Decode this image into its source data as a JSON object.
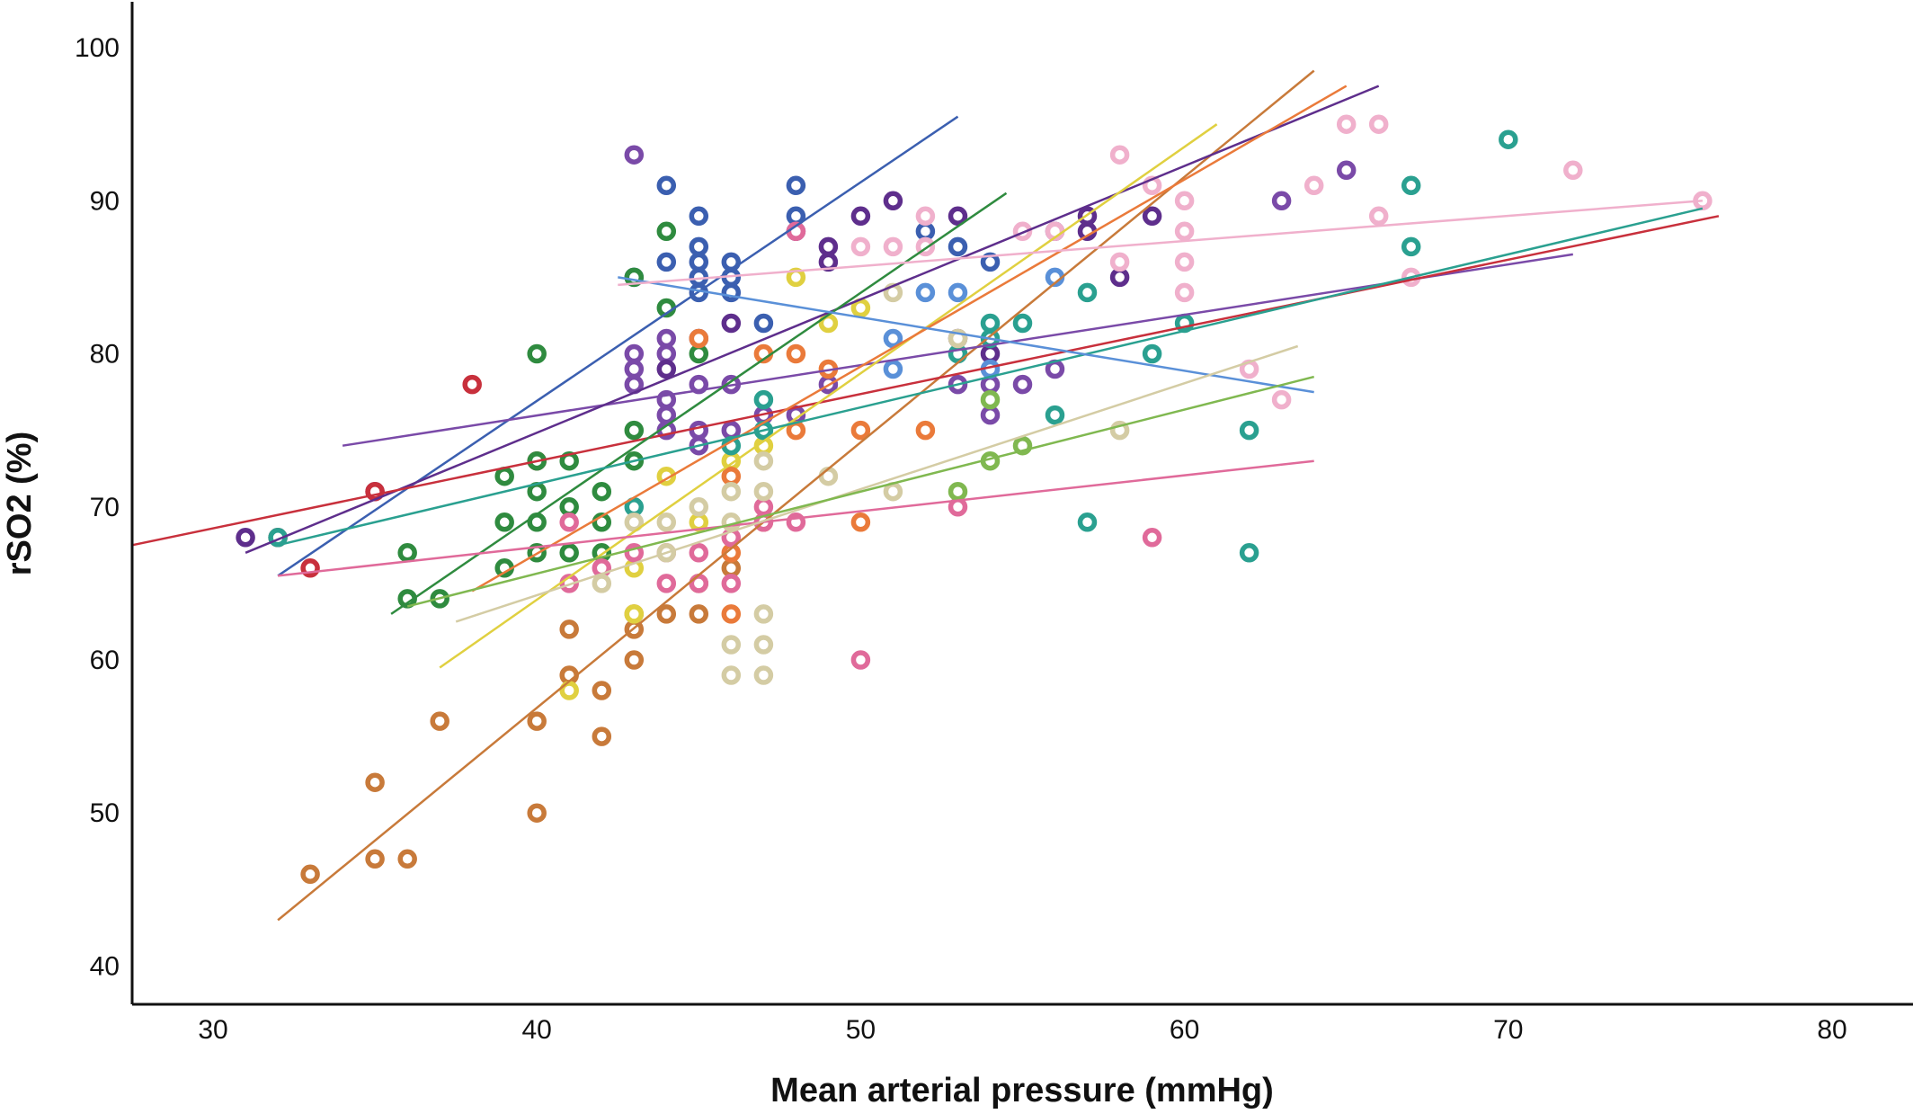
{
  "chart_data": {
    "type": "scatter",
    "title": "",
    "xlabel": "Mean arterial pressure (mmHg)",
    "ylabel": "rSO2 (%)",
    "xlim": [
      27.5,
      82.5
    ],
    "ylim": [
      37.5,
      103
    ],
    "xticks": [
      30,
      40,
      50,
      60,
      70,
      80
    ],
    "yticks": [
      40,
      50,
      60,
      70,
      80,
      90,
      100
    ],
    "grid": false,
    "legend": "none",
    "series": [
      {
        "color": "#c87a3a",
        "points": [
          [
            33,
            46
          ],
          [
            35,
            47
          ],
          [
            35,
            52
          ],
          [
            36,
            47
          ],
          [
            37,
            56
          ],
          [
            40,
            50
          ],
          [
            40,
            56
          ],
          [
            41,
            59
          ],
          [
            41,
            62
          ],
          [
            42,
            55
          ],
          [
            42,
            58
          ],
          [
            43,
            60
          ],
          [
            43,
            62
          ],
          [
            43,
            63
          ],
          [
            44,
            63
          ],
          [
            45,
            63
          ],
          [
            45,
            65
          ],
          [
            46,
            66
          ]
        ],
        "fit": [
          [
            32,
            43
          ],
          [
            64,
            98.5
          ]
        ]
      },
      {
        "color": "#3b5fb0",
        "points": [
          [
            43,
            85
          ],
          [
            44,
            86
          ],
          [
            44,
            91
          ],
          [
            45,
            84
          ],
          [
            45,
            85
          ],
          [
            45,
            86
          ],
          [
            45,
            87
          ],
          [
            45,
            89
          ],
          [
            46,
            84
          ],
          [
            46,
            85
          ],
          [
            46,
            86
          ],
          [
            47,
            82
          ],
          [
            48,
            89
          ],
          [
            48,
            91
          ],
          [
            52,
            88
          ],
          [
            53,
            87
          ],
          [
            54,
            86
          ]
        ],
        "fit": [
          [
            32,
            65.5
          ],
          [
            53,
            95.5
          ]
        ]
      },
      {
        "color": "#7a4aa8",
        "points": [
          [
            43,
            93
          ],
          [
            43,
            78
          ],
          [
            43,
            79
          ],
          [
            43,
            80
          ],
          [
            44,
            75
          ],
          [
            44,
            76
          ],
          [
            44,
            77
          ],
          [
            44,
            80
          ],
          [
            44,
            81
          ],
          [
            45,
            74
          ],
          [
            45,
            75
          ],
          [
            45,
            78
          ],
          [
            46,
            75
          ],
          [
            46,
            78
          ],
          [
            47,
            76
          ],
          [
            48,
            76
          ],
          [
            49,
            78
          ],
          [
            53,
            78
          ],
          [
            54,
            76
          ],
          [
            54,
            78
          ],
          [
            55,
            78
          ],
          [
            56,
            79
          ],
          [
            63,
            90
          ],
          [
            65,
            92
          ]
        ],
        "fit": [
          [
            34,
            74
          ],
          [
            72,
            86.5
          ]
        ]
      },
      {
        "color": "#5e2e8c",
        "points": [
          [
            31,
            68
          ],
          [
            35,
            71
          ],
          [
            44,
            79
          ],
          [
            45,
            81
          ],
          [
            46,
            82
          ],
          [
            48,
            88
          ],
          [
            49,
            86
          ],
          [
            49,
            87
          ],
          [
            50,
            89
          ],
          [
            51,
            90
          ],
          [
            53,
            89
          ],
          [
            53,
            81
          ],
          [
            54,
            80
          ],
          [
            56,
            88
          ],
          [
            57,
            88
          ],
          [
            57,
            89
          ],
          [
            58,
            85
          ],
          [
            59,
            89
          ]
        ],
        "fit": [
          [
            31,
            67
          ],
          [
            66,
            97.5
          ]
        ]
      },
      {
        "color": "#c8303c",
        "points": [
          [
            32,
            68
          ],
          [
            33,
            66
          ],
          [
            35,
            71
          ],
          [
            38,
            78
          ],
          [
            40,
            73
          ]
        ],
        "fit": [
          [
            27.5,
            67.5
          ],
          [
            76.5,
            89
          ]
        ]
      },
      {
        "color": "#2f8b3f",
        "points": [
          [
            36,
            67
          ],
          [
            36,
            64
          ],
          [
            37,
            64
          ],
          [
            39,
            72
          ],
          [
            39,
            69
          ],
          [
            39,
            66
          ],
          [
            40,
            69
          ],
          [
            40,
            71
          ],
          [
            40,
            73
          ],
          [
            40,
            80
          ],
          [
            40,
            67
          ],
          [
            41,
            67
          ],
          [
            41,
            70
          ],
          [
            41,
            73
          ],
          [
            42,
            69
          ],
          [
            42,
            71
          ],
          [
            42,
            67
          ],
          [
            43,
            75
          ],
          [
            43,
            73
          ],
          [
            43,
            85
          ],
          [
            44,
            83
          ],
          [
            44,
            88
          ],
          [
            45,
            80
          ]
        ],
        "fit": [
          [
            35.5,
            63
          ],
          [
            54.5,
            90.5
          ]
        ]
      },
      {
        "color": "#e0d040",
        "points": [
          [
            41,
            58
          ],
          [
            43,
            63
          ],
          [
            43,
            66
          ],
          [
            44,
            72
          ],
          [
            45,
            69
          ],
          [
            46,
            73
          ],
          [
            47,
            74
          ],
          [
            48,
            85
          ],
          [
            49,
            82
          ],
          [
            50,
            83
          ]
        ],
        "fit": [
          [
            37,
            59.5
          ],
          [
            61,
            95
          ]
        ]
      },
      {
        "color": "#ea7a3a",
        "points": [
          [
            45,
            81
          ],
          [
            46,
            63
          ],
          [
            46,
            72
          ],
          [
            46,
            67
          ],
          [
            47,
            69
          ],
          [
            47,
            80
          ],
          [
            48,
            75
          ],
          [
            48,
            80
          ],
          [
            49,
            79
          ],
          [
            50,
            69
          ],
          [
            50,
            75
          ],
          [
            52,
            75
          ]
        ],
        "fit": [
          [
            38,
            64.5
          ],
          [
            65,
            97.5
          ]
        ]
      },
      {
        "color": "#2aa090",
        "points": [
          [
            32,
            68
          ],
          [
            43,
            70
          ],
          [
            46,
            74
          ],
          [
            47,
            75
          ],
          [
            47,
            77
          ],
          [
            53,
            80
          ],
          [
            54,
            82
          ],
          [
            54,
            81
          ],
          [
            55,
            82
          ],
          [
            56,
            76
          ],
          [
            57,
            69
          ],
          [
            57,
            84
          ],
          [
            59,
            80
          ],
          [
            60,
            82
          ],
          [
            62,
            75
          ],
          [
            62,
            67
          ],
          [
            67,
            87
          ],
          [
            67,
            91
          ],
          [
            70,
            94
          ]
        ],
        "fit": [
          [
            32,
            67.5
          ],
          [
            76,
            89.5
          ]
        ]
      },
      {
        "color": "#5a90d8",
        "points": [
          [
            51,
            79
          ],
          [
            51,
            81
          ],
          [
            52,
            84
          ],
          [
            53,
            84
          ],
          [
            54,
            79
          ],
          [
            56,
            85
          ]
        ],
        "fit": [
          [
            42.5,
            85
          ],
          [
            64,
            77.5
          ]
        ]
      },
      {
        "color": "#e06a9a",
        "points": [
          [
            41,
            65
          ],
          [
            41,
            69
          ],
          [
            42,
            66
          ],
          [
            43,
            67
          ],
          [
            44,
            65
          ],
          [
            44,
            67
          ],
          [
            45,
            65
          ],
          [
            45,
            67
          ],
          [
            46,
            65
          ],
          [
            46,
            68
          ],
          [
            47,
            69
          ],
          [
            47,
            70
          ],
          [
            48,
            69
          ],
          [
            48,
            88
          ],
          [
            50,
            60
          ],
          [
            53,
            70
          ],
          [
            59,
            68
          ]
        ],
        "fit": [
          [
            32,
            65.5
          ],
          [
            64,
            73
          ]
        ]
      },
      {
        "color": "#f0b0cc",
        "points": [
          [
            50,
            87
          ],
          [
            51,
            87
          ],
          [
            52,
            87
          ],
          [
            52,
            89
          ],
          [
            55,
            88
          ],
          [
            56,
            88
          ],
          [
            58,
            93
          ],
          [
            58,
            86
          ],
          [
            59,
            91
          ],
          [
            60,
            84
          ],
          [
            60,
            86
          ],
          [
            60,
            88
          ],
          [
            60,
            90
          ],
          [
            62,
            79
          ],
          [
            63,
            77
          ],
          [
            64,
            91
          ],
          [
            65,
            95
          ],
          [
            66,
            95
          ],
          [
            66,
            89
          ],
          [
            67,
            85
          ],
          [
            72,
            92
          ],
          [
            76,
            90
          ]
        ],
        "fit": [
          [
            42.5,
            84.5
          ],
          [
            76,
            90
          ]
        ]
      },
      {
        "color": "#d4cca4",
        "points": [
          [
            42,
            65
          ],
          [
            43,
            69
          ],
          [
            44,
            67
          ],
          [
            44,
            69
          ],
          [
            45,
            70
          ],
          [
            46,
            59
          ],
          [
            46,
            61
          ],
          [
            46,
            69
          ],
          [
            46,
            71
          ],
          [
            47,
            59
          ],
          [
            47,
            61
          ],
          [
            47,
            63
          ],
          [
            47,
            71
          ],
          [
            47,
            73
          ],
          [
            49,
            72
          ],
          [
            51,
            71
          ],
          [
            51,
            84
          ],
          [
            53,
            81
          ],
          [
            58,
            75
          ]
        ],
        "fit": [
          [
            37.5,
            62.5
          ],
          [
            63.5,
            80.5
          ]
        ]
      },
      {
        "color": "#80b850",
        "points": [
          [
            53,
            71
          ],
          [
            54,
            73
          ],
          [
            54,
            77
          ],
          [
            55,
            74
          ]
        ],
        "fit": [
          [
            36,
            63.5
          ],
          [
            64,
            78.5
          ]
        ]
      }
    ]
  }
}
